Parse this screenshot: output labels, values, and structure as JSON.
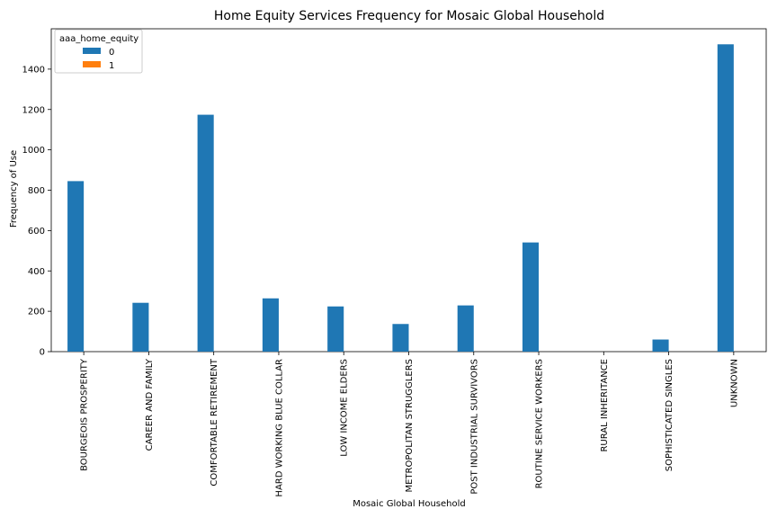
{
  "chart_data": {
    "type": "bar",
    "title": "Home Equity Services Frequency for Mosaic Global Household",
    "xlabel": "Mosaic Global Household",
    "ylabel": "Frequency of Use",
    "categories": [
      "BOURGEOIS PROSPERITY",
      "CAREER AND FAMILY",
      "COMFORTABLE RETIREMENT",
      "HARD WORKING BLUE COLLAR",
      "LOW INCOME ELDERS",
      "METROPOLITAN STRUGGLERS",
      "POST INDUSTRIAL SURVIVORS",
      "ROUTINE SERVICE WORKERS",
      "RURAL INHERITANCE",
      "SOPHISTICATED SINGLES",
      "UNKNOWN"
    ],
    "series": [
      {
        "name": "0",
        "color": "#1f77b4",
        "values": [
          845,
          242,
          1174,
          264,
          224,
          137,
          229,
          541,
          0,
          60,
          1523
        ]
      },
      {
        "name": "1",
        "color": "#ff7f0e",
        "values": [
          0,
          0,
          0,
          0,
          0,
          0,
          0,
          0,
          0,
          0,
          0
        ]
      }
    ],
    "ylim": [
      0,
      1600
    ],
    "yticks": [
      0,
      200,
      400,
      600,
      800,
      1000,
      1200,
      1400
    ],
    "legend": {
      "title": "aaa_home_equity",
      "position": "top-left"
    },
    "grid": false
  }
}
